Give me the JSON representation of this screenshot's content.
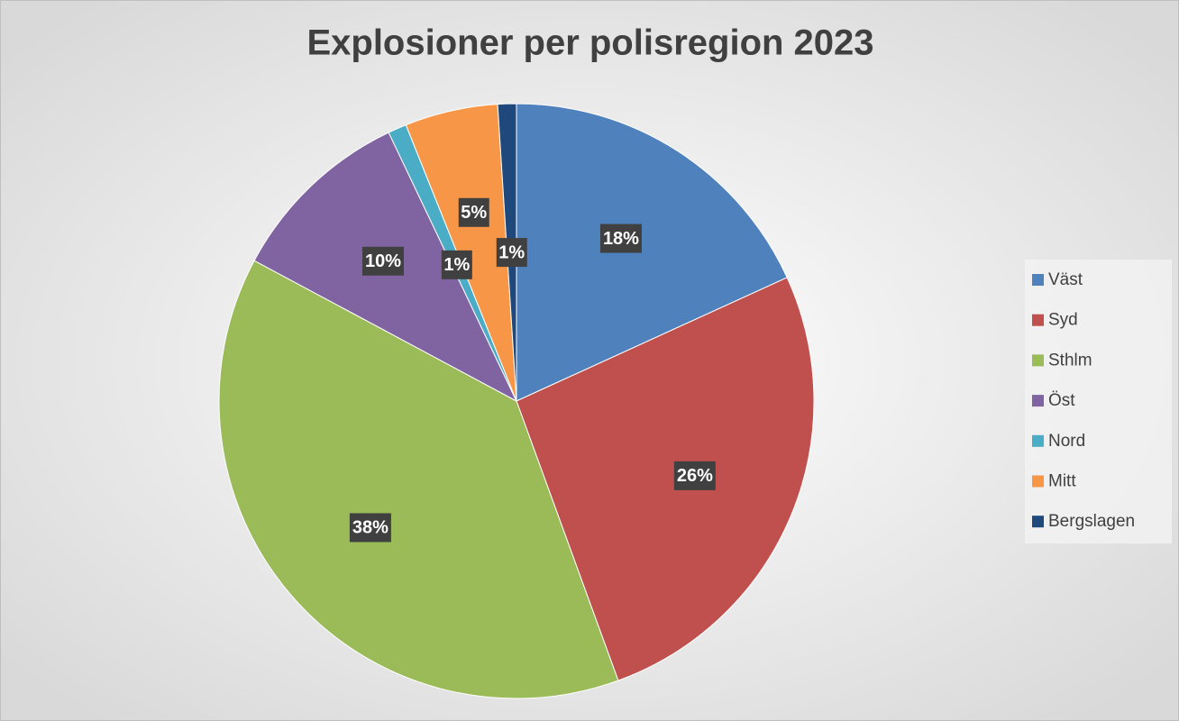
{
  "chart_data": {
    "type": "pie",
    "title": "Explosioner per polisregion 2023",
    "categories": [
      "Väst",
      "Syd",
      "Sthlm",
      "Öst",
      "Nord",
      "Mitt",
      "Bergslagen"
    ],
    "values": [
      18,
      26,
      38,
      10,
      1,
      5,
      1
    ],
    "value_labels": [
      "18%",
      "26%",
      "38%",
      "10%",
      "1%",
      "5%",
      "1%"
    ],
    "colors": [
      "#4f81bd",
      "#c0504d",
      "#9bbb59",
      "#8064a2",
      "#4bacc6",
      "#f79646",
      "#1f497d"
    ],
    "legend": "right"
  }
}
